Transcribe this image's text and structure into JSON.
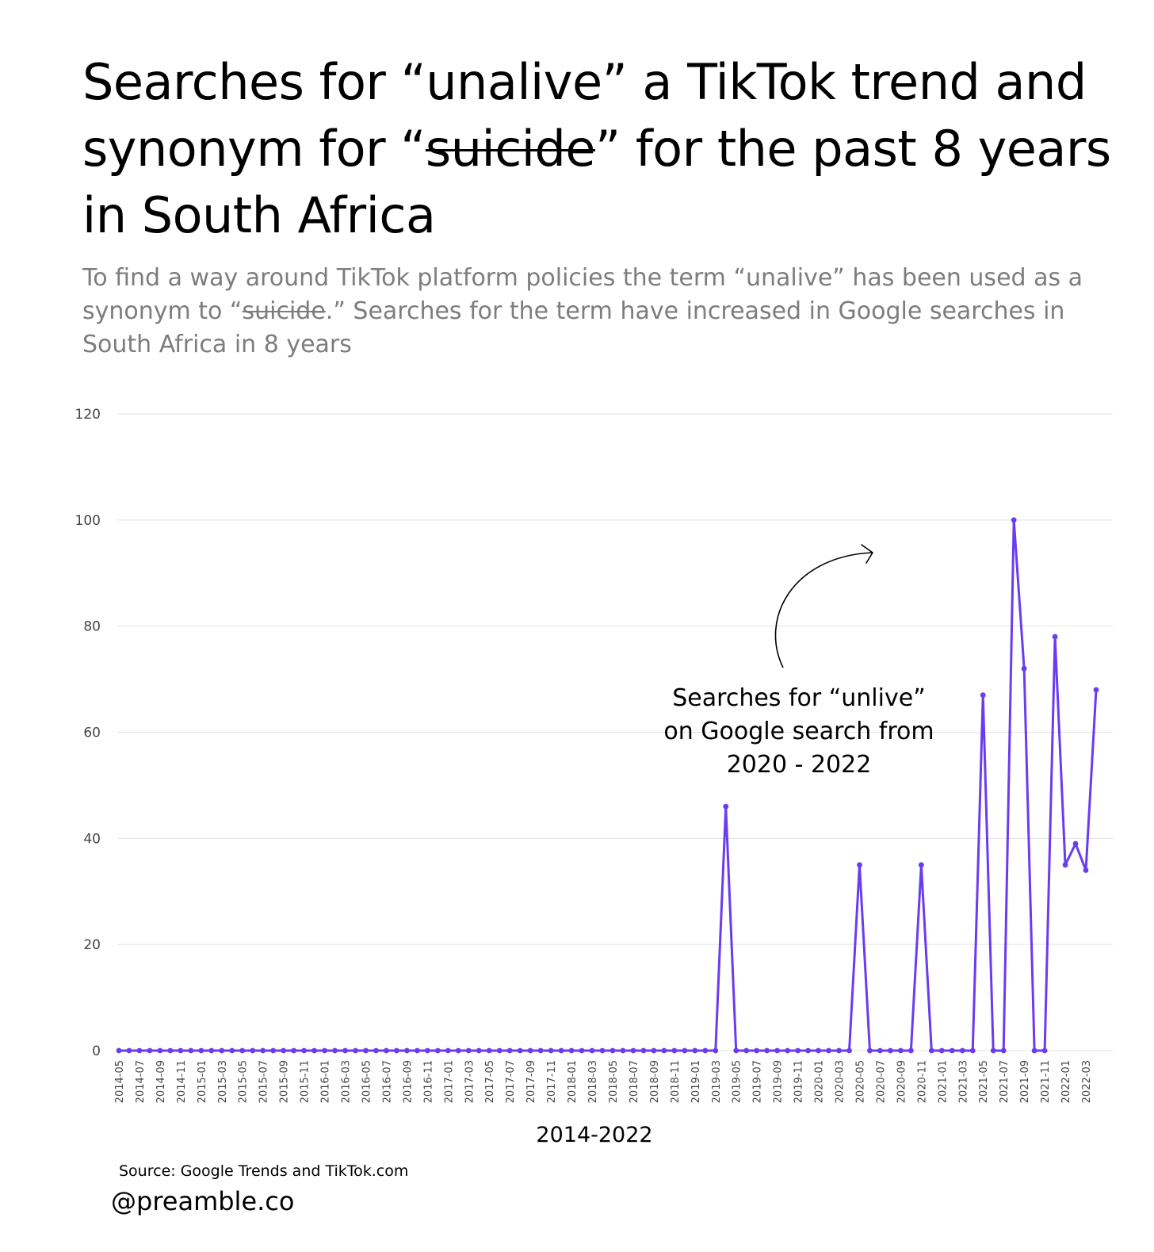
{
  "title": {
    "part1": "Searches for “unalive” a TikTok trend and synonym for “",
    "strike": "suicide",
    "part2": "” for the past 8 years in South Africa"
  },
  "subtitle": {
    "part1": "To find a way around TikTok platform policies the term “unalive” has been used as a synonym to “",
    "strike": "suicide",
    "part2": ".” Searches for the term have increased in Google searches in South Africa in 8 years"
  },
  "annotation": {
    "lines": [
      "Searches for “unlive”",
      "on Google search from",
      "2020 - 2022"
    ]
  },
  "source": "Source: Google Trends and TikTok.com",
  "handle": "@preamble.co",
  "colors": {
    "line": "#6a3cf0",
    "grid": "#e3e3e3",
    "axis_text": "#444444"
  },
  "chart_data": {
    "type": "line",
    "xlabel": "2014-2022",
    "ylabel": "",
    "ylim": [
      0,
      120
    ],
    "yticks": [
      0,
      20,
      40,
      60,
      80,
      100,
      120
    ],
    "grid": true,
    "x": [
      "2014-05",
      "2014-06",
      "2014-07",
      "2014-08",
      "2014-09",
      "2014-10",
      "2014-11",
      "2014-12",
      "2015-01",
      "2015-02",
      "2015-03",
      "2015-04",
      "2015-05",
      "2015-06",
      "2015-07",
      "2015-08",
      "2015-09",
      "2015-10",
      "2015-11",
      "2015-12",
      "2016-01",
      "2016-02",
      "2016-03",
      "2016-04",
      "2016-05",
      "2016-06",
      "2016-07",
      "2016-08",
      "2016-09",
      "2016-10",
      "2016-11",
      "2016-12",
      "2017-01",
      "2017-02",
      "2017-03",
      "2017-04",
      "2017-05",
      "2017-06",
      "2017-07",
      "2017-08",
      "2017-09",
      "2017-10",
      "2017-11",
      "2017-12",
      "2018-01",
      "2018-02",
      "2018-03",
      "2018-04",
      "2018-05",
      "2018-06",
      "2018-07",
      "2018-08",
      "2018-09",
      "2018-10",
      "2018-11",
      "2018-12",
      "2019-01",
      "2019-02",
      "2019-03",
      "2019-04",
      "2019-05",
      "2019-06",
      "2019-07",
      "2019-08",
      "2019-09",
      "2019-10",
      "2019-11",
      "2019-12",
      "2020-01",
      "2020-02",
      "2020-03",
      "2020-04",
      "2020-05",
      "2020-06",
      "2020-07",
      "2020-08",
      "2020-09",
      "2020-10",
      "2020-11",
      "2020-12",
      "2021-01",
      "2021-02",
      "2021-03",
      "2021-04",
      "2021-05",
      "2021-06",
      "2021-07",
      "2021-08",
      "2021-09",
      "2021-10",
      "2021-11",
      "2021-12",
      "2022-01",
      "2022-02",
      "2022-03",
      "2022-04"
    ],
    "tick_labels": [
      "2014-05",
      "2014-07",
      "2014-09",
      "2014-11",
      "2015-01",
      "2015-03",
      "2015-05",
      "2015-07",
      "2015-09",
      "2015-11",
      "2016-01",
      "2016-03",
      "2016-05",
      "2016-07",
      "2016-09",
      "2016-11",
      "2017-01",
      "2017-03",
      "2017-05",
      "2017-07",
      "2017-09",
      "2017-11",
      "2018-01",
      "2018-03",
      "2018-05",
      "2018-07",
      "2018-09",
      "2018-11",
      "2019-01",
      "2019-03",
      "2019-05",
      "2019-07",
      "2019-09",
      "2019-11",
      "2020-01",
      "2020-03",
      "2020-05",
      "2020-07",
      "2020-09",
      "2020-11",
      "2021-01",
      "2021-03",
      "2021-05",
      "2021-07",
      "2021-09",
      "2021-11",
      "2022-01",
      "2022-03"
    ],
    "series": [
      {
        "values": [
          0,
          0,
          0,
          0,
          0,
          0,
          0,
          0,
          0,
          0,
          0,
          0,
          0,
          0,
          0,
          0,
          0,
          0,
          0,
          0,
          0,
          0,
          0,
          0,
          0,
          0,
          0,
          0,
          0,
          0,
          0,
          0,
          0,
          0,
          0,
          0,
          0,
          0,
          0,
          0,
          0,
          0,
          0,
          0,
          0,
          0,
          0,
          0,
          0,
          0,
          0,
          0,
          0,
          0,
          0,
          0,
          0,
          0,
          0,
          46,
          0,
          0,
          0,
          0,
          0,
          0,
          0,
          0,
          0,
          0,
          0,
          0,
          35,
          0,
          0,
          0,
          0,
          0,
          35,
          0,
          0,
          0,
          0,
          0,
          67,
          0,
          0,
          100,
          72,
          0,
          0,
          78,
          35,
          39,
          34,
          68
        ]
      }
    ]
  }
}
